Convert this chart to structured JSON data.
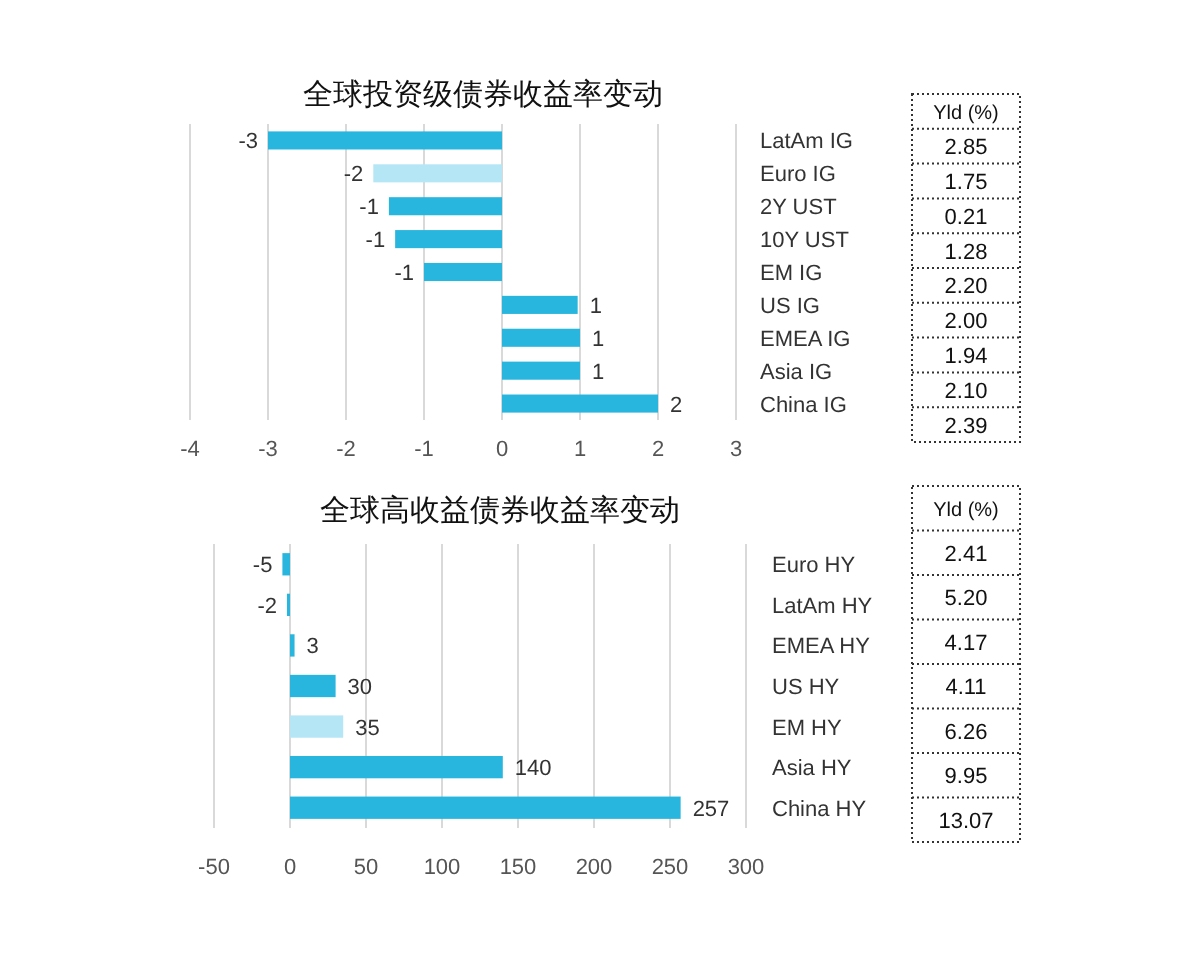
{
  "chart_data": [
    {
      "type": "bar",
      "orientation": "horizontal",
      "title": "全球投资级债券收益率变动",
      "categories": [
        "LatAm IG",
        "Euro IG",
        "2Y UST",
        "10Y UST",
        "EM IG",
        "US IG",
        "EMEA IG",
        "Asia IG",
        "China IG"
      ],
      "values": [
        -3,
        -1.65,
        -1.45,
        -1.37,
        -1,
        0.97,
        1,
        1,
        2
      ],
      "value_labels": [
        "-3",
        "-2",
        "-1",
        "-1",
        "-1",
        "1",
        "1",
        "1",
        "2"
      ],
      "colors": [
        "#29b6de",
        "#b5e6f6",
        "#29b6de",
        "#29b6de",
        "#29b6de",
        "#29b6de",
        "#29b6de",
        "#29b6de",
        "#29b6de"
      ],
      "xlim": [
        -4,
        3
      ],
      "xticks": [
        -4,
        -3,
        -2,
        -1,
        0,
        1,
        2,
        3
      ],
      "grid": "x"
    },
    {
      "type": "other",
      "title": "Yld (%)",
      "annotations": [
        "2.85",
        "1.75",
        "0.21",
        "1.28",
        "2.20",
        "2.00",
        "1.94",
        "2.10",
        "2.39"
      ]
    },
    {
      "type": "bar",
      "orientation": "horizontal",
      "title": "全球高收益债券收益率变动",
      "categories": [
        "Euro HY",
        "LatAm HY",
        "EMEA HY",
        "US HY",
        "EM HY",
        "Asia HY",
        "China HY"
      ],
      "values": [
        -5,
        -2,
        3,
        30,
        35,
        140,
        257
      ],
      "data_labels": true,
      "colors": [
        "#29b6de",
        "#29b6de",
        "#29b6de",
        "#29b6de",
        "#b5e6f6",
        "#29b6de",
        "#29b6de"
      ],
      "xlim": [
        -50,
        300
      ],
      "xticks": [
        -50,
        0,
        50,
        100,
        150,
        200,
        250,
        300
      ],
      "grid": "x"
    },
    {
      "type": "other",
      "title": "Yld (%)",
      "annotations": [
        "2.41",
        "5.20",
        "4.17",
        "4.11",
        "6.26",
        "9.95",
        "13.07"
      ]
    }
  ]
}
